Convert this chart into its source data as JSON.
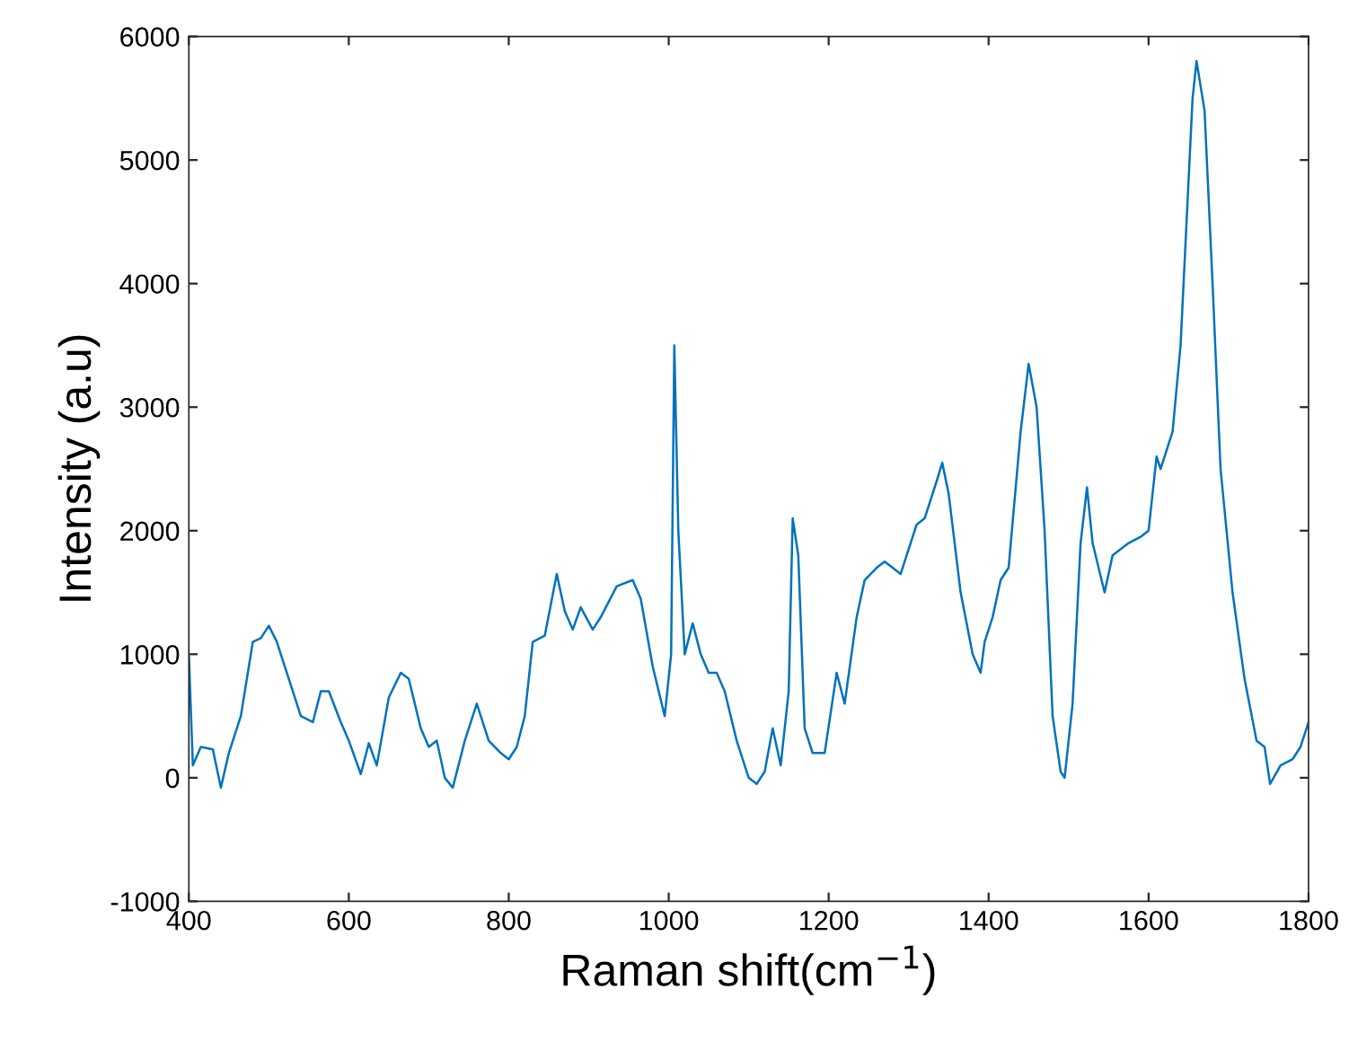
{
  "chart_data": {
    "type": "line",
    "xlabel": "Raman shift(cm$^{−1}$)",
    "ylabel": "Intensity (a.u)",
    "xlim": [
      400,
      1800
    ],
    "xticks": [
      400,
      600,
      800,
      1000,
      1200,
      1400,
      1600,
      1800
    ],
    "ylim": [
      -1000,
      6000
    ],
    "yticks": [
      -1000,
      0,
      1000,
      2000,
      3000,
      4000,
      5000,
      6000
    ],
    "grid": false,
    "marker": "none",
    "line_style": "solid",
    "series": [
      {
        "color": "#0072bd",
        "x": [
          400,
          405,
          415,
          430,
          440,
          450,
          465,
          480,
          490,
          500,
          510,
          520,
          540,
          555,
          565,
          575,
          590,
          600,
          615,
          625,
          635,
          650,
          665,
          675,
          690,
          700,
          710,
          720,
          730,
          745,
          760,
          775,
          790,
          800,
          810,
          820,
          830,
          845,
          860,
          870,
          880,
          890,
          905,
          915,
          935,
          955,
          965,
          980,
          995,
          1003,
          1007,
          1012,
          1020,
          1030,
          1040,
          1050,
          1060,
          1070,
          1085,
          1100,
          1110,
          1120,
          1130,
          1140,
          1150,
          1155,
          1162,
          1170,
          1180,
          1195,
          1210,
          1220,
          1235,
          1245,
          1260,
          1270,
          1280,
          1290,
          1300,
          1310,
          1320,
          1335,
          1342,
          1350,
          1365,
          1380,
          1390,
          1395,
          1405,
          1415,
          1425,
          1440,
          1450,
          1460,
          1470,
          1480,
          1490,
          1495,
          1505,
          1515,
          1523,
          1530,
          1545,
          1555,
          1575,
          1590,
          1600,
          1610,
          1615,
          1630,
          1640,
          1655,
          1660,
          1670,
          1680,
          1690,
          1705,
          1720,
          1735,
          1745,
          1752,
          1765,
          1780,
          1790,
          1800
        ],
        "values": [
          1000,
          100,
          250,
          230,
          -80,
          200,
          500,
          1100,
          1130,
          1230,
          1100,
          900,
          500,
          450,
          700,
          700,
          450,
          300,
          30,
          280,
          100,
          650,
          850,
          800,
          400,
          250,
          300,
          0,
          -80,
          300,
          600,
          300,
          200,
          150,
          250,
          500,
          1100,
          1150,
          1650,
          1350,
          1200,
          1380,
          1200,
          1300,
          1550,
          1600,
          1450,
          900,
          500,
          1000,
          3500,
          2000,
          1000,
          1250,
          1000,
          850,
          850,
          700,
          300,
          0,
          -50,
          50,
          400,
          100,
          700,
          2100,
          1800,
          400,
          200,
          200,
          850,
          600,
          1300,
          1600,
          1700,
          1750,
          1700,
          1650,
          1850,
          2050,
          2100,
          2400,
          2550,
          2300,
          1500,
          1000,
          850,
          1100,
          1300,
          1600,
          1700,
          2800,
          3350,
          3000,
          2000,
          500,
          50,
          0,
          600,
          1900,
          2350,
          1900,
          1500,
          1800,
          1900,
          1950,
          2000,
          2600,
          2500,
          2800,
          3500,
          5500,
          5800,
          5400,
          4000,
          2500,
          1500,
          800,
          300,
          250,
          -50,
          100,
          150,
          250,
          450
        ]
      }
    ]
  }
}
